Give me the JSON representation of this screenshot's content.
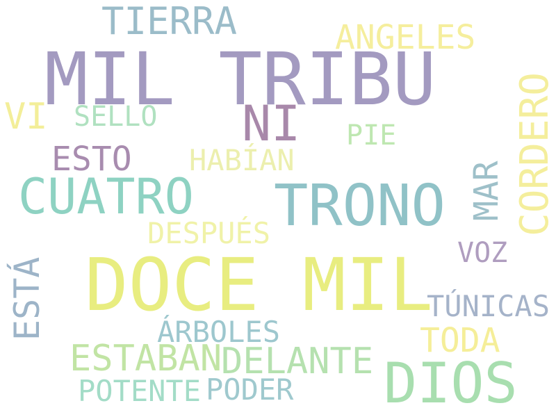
{
  "words": [
    {
      "id": "mil-tribu",
      "text": "MIL TRIBU",
      "color": "#9389b6"
    },
    {
      "id": "doce-mil",
      "text": "DOCE MIL",
      "color": "#e5ea6a"
    },
    {
      "id": "trono",
      "text": "TRONO",
      "color": "#7db8be"
    },
    {
      "id": "cuatro",
      "text": "CUATRO",
      "color": "#7bcbb8"
    },
    {
      "id": "dios",
      "text": "DIOS",
      "color": "#9ad9a2"
    },
    {
      "id": "cordero",
      "text": "CORDERO",
      "color": "#f3ec8b"
    },
    {
      "id": "tierra",
      "text": "TIERRA",
      "color": "#8ab1c0"
    },
    {
      "id": "ni",
      "text": "NI",
      "color": "#9a749c"
    },
    {
      "id": "angeles",
      "text": "ANGELES",
      "color": "#f4ec8c"
    },
    {
      "id": "esta",
      "text": "ESTÁ",
      "color": "#8ca8bf"
    },
    {
      "id": "mar",
      "text": "MAR",
      "color": "#8eb6c0"
    },
    {
      "id": "estaban",
      "text": "ESTABAN",
      "color": "#b7e095"
    },
    {
      "id": "delante",
      "text": "DELANTE",
      "color": "#a9dca2"
    },
    {
      "id": "esto",
      "text": "ESTO",
      "color": "#9a78a2"
    },
    {
      "id": "sello",
      "text": "SELLO",
      "color": "#a3dcb6"
    },
    {
      "id": "vi",
      "text": "VI",
      "color": "#f1ec88"
    },
    {
      "id": "habian",
      "text": "HABÍAN",
      "color": "#e9eda0"
    },
    {
      "id": "despues",
      "text": "DESPUÉS",
      "color": "#eef09a"
    },
    {
      "id": "pie",
      "text": "PIE",
      "color": "#b3e3a4"
    },
    {
      "id": "voz",
      "text": "VOZ",
      "color": "#a28db5"
    },
    {
      "id": "tunicas",
      "text": "TÚNICAS",
      "color": "#96a6c0"
    },
    {
      "id": "toda",
      "text": "TODA",
      "color": "#f4ec88"
    },
    {
      "id": "arboles",
      "text": "ÁRBOLES",
      "color": "#8dbec6"
    },
    {
      "id": "potente",
      "text": "POTENTE",
      "color": "#93d6be"
    },
    {
      "id": "poder",
      "text": "PODER",
      "color": "#8fc0c6"
    }
  ]
}
